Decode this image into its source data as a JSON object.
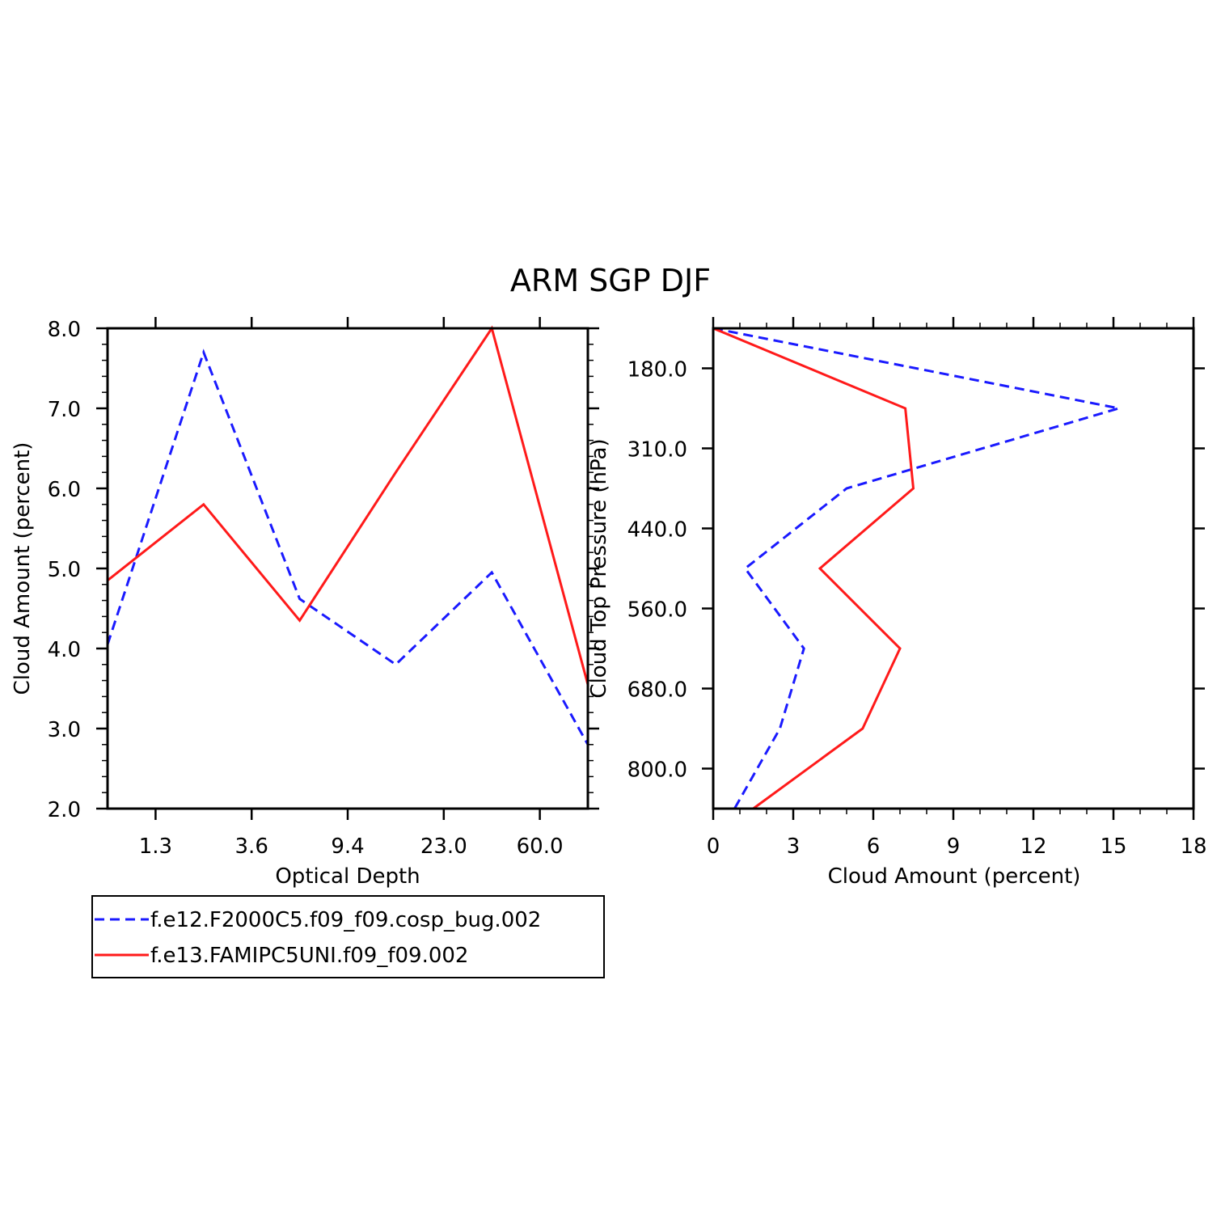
{
  "title": "ARM SGP DJF",
  "colors": {
    "series1": "#1a1aff",
    "series2": "#ff1a1a",
    "axis": "#000000"
  },
  "chart_data": [
    {
      "type": "line",
      "xlabel": "Optical Depth",
      "ylabel": "Cloud Amount (percent)",
      "x_tick_labels": [
        "1.3",
        "3.6",
        "9.4",
        "23.0",
        "60.0"
      ],
      "y_tick_labels": [
        "2.0",
        "3.0",
        "4.0",
        "5.0",
        "6.0",
        "7.0",
        "8.0"
      ],
      "ylim": [
        2.0,
        8.0
      ],
      "x_positions": [
        0,
        1,
        2,
        3,
        4,
        5
      ],
      "series": [
        {
          "name": "f.e12.F2000C5.f09_f09.cosp_bug.002",
          "style": "dashed",
          "values": [
            4.05,
            7.7,
            4.62,
            3.8,
            4.95,
            2.8
          ]
        },
        {
          "name": "f.e13.FAMIPC5UNI.f09_f09.002",
          "style": "solid",
          "values": [
            4.85,
            5.8,
            4.35,
            6.2,
            8.0,
            3.55
          ]
        }
      ]
    },
    {
      "type": "line",
      "xlabel": "Cloud Amount (percent)",
      "ylabel": "Cloud Top Pressure (hPa)",
      "x_tick_labels": [
        "0",
        "3",
        "6",
        "9",
        "12",
        "15",
        "18"
      ],
      "xlim": [
        0,
        18
      ],
      "y_tick_labels": [
        "180.0",
        "310.0",
        "440.0",
        "560.0",
        "680.0",
        "800.0"
      ],
      "ylim": [
        90,
        1000
      ],
      "series": [
        {
          "name": "f.e12.F2000C5.f09_f09.cosp_bug.002",
          "style": "dashed",
          "x": [
            0,
            15.2,
            5.0,
            1.2,
            3.4,
            2.5,
            0.8
          ],
          "y": [
            90,
            245,
            375,
            500,
            620,
            740,
            1000
          ]
        },
        {
          "name": "f.e13.FAMIPC5UNI.f09_f09.002",
          "style": "solid",
          "x": [
            0,
            7.2,
            7.5,
            4.0,
            7.0,
            5.6,
            1.5
          ],
          "y": [
            90,
            245,
            375,
            500,
            620,
            740,
            1000
          ]
        }
      ]
    }
  ],
  "legend": [
    {
      "label": "f.e12.F2000C5.f09_f09.cosp_bug.002",
      "style": "dashed"
    },
    {
      "label": "f.e13.FAMIPC5UNI.f09_f09.002",
      "style": "solid"
    }
  ]
}
